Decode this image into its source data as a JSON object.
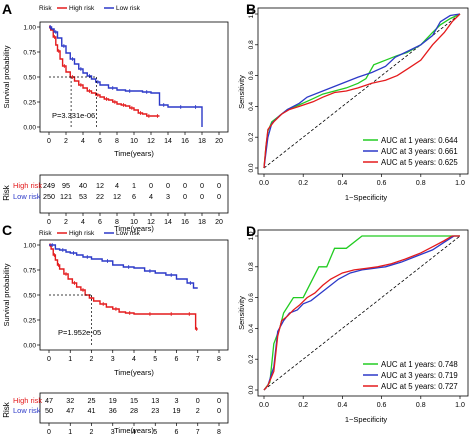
{
  "panels": {
    "A": {
      "letter": "A",
      "legend": {
        "title": "Risk",
        "high": "High risk",
        "low": "Low risk"
      },
      "pvalue": "P=3.331e-06",
      "ylabel": "Survival probability",
      "xlabel": "Time(years)",
      "risk_table": {
        "title": "Risk",
        "xlabel": "Time(years)",
        "rows": [
          {
            "label": "High risk",
            "counts": [
              "249",
              "95",
              "40",
              "12",
              "4",
              "1",
              "0",
              "0",
              "0",
              "0",
              "0"
            ]
          },
          {
            "label": "Low risk",
            "counts": [
              "250",
              "121",
              "53",
              "22",
              "12",
              "6",
              "4",
              "3",
              "0",
              "0",
              "0"
            ]
          }
        ]
      }
    },
    "B": {
      "letter": "B",
      "ylabel": "Sensitivity",
      "xlabel": "1−Specificity",
      "legend": [
        "AUC at 1 years: 0.644",
        "AUC at 3 years: 0.661",
        "AUC at 5 years: 0.625"
      ]
    },
    "C": {
      "letter": "C",
      "legend": {
        "title": "Risk",
        "high": "High risk",
        "low": "Low risk"
      },
      "pvalue": "P=1.952e-05",
      "ylabel": "Survival probability",
      "xlabel": "Time(years)",
      "risk_table": {
        "title": "Risk",
        "xlabel": "Time(years)",
        "rows": [
          {
            "label": "High risk",
            "counts": [
              "47",
              "32",
              "25",
              "19",
              "15",
              "13",
              "3",
              "0",
              "0"
            ]
          },
          {
            "label": "Low risk",
            "counts": [
              "50",
              "47",
              "41",
              "36",
              "28",
              "23",
              "19",
              "2",
              "0"
            ]
          }
        ]
      }
    },
    "D": {
      "letter": "D",
      "ylabel": "Sensitivity",
      "xlabel": "1−Specificity",
      "legend": [
        "AUC at 1 years: 0.748",
        "AUC at 3 years: 0.719",
        "AUC at 5 years: 0.727"
      ]
    }
  },
  "colors": {
    "high": "#e41a1c",
    "low": "#2c39c8",
    "auc1": "#22cc22",
    "auc3": "#2c39c8",
    "auc5": "#e41a1c"
  },
  "chart_data": [
    {
      "type": "line",
      "panel": "A",
      "xlabel": "Time(years)",
      "ylabel": "Survival probability",
      "xlim": [
        0,
        20
      ],
      "ylim": [
        0,
        1
      ],
      "xticks": [
        "0",
        "2",
        "4",
        "6",
        "8",
        "10",
        "12",
        "14",
        "16",
        "18",
        "20"
      ],
      "yticks": [
        "0.00",
        "0.25",
        "0.50",
        "0.75",
        "1.00"
      ],
      "annotation": "P=3.331e-06",
      "series": [
        {
          "name": "High risk",
          "color": "#e41a1c",
          "x": [
            0,
            0.2,
            0.5,
            0.8,
            1.0,
            1.3,
            1.6,
            2.0,
            2.5,
            3.0,
            3.5,
            4.0,
            4.5,
            5.0,
            5.5,
            6.0,
            6.5,
            7.0,
            7.5,
            8.0,
            8.5,
            9.0,
            9.5,
            10.0,
            10.5,
            11.0,
            11.5,
            12.0,
            12.5,
            13.0
          ],
          "y": [
            1.0,
            0.97,
            0.9,
            0.82,
            0.76,
            0.68,
            0.61,
            0.55,
            0.5,
            0.46,
            0.42,
            0.39,
            0.36,
            0.34,
            0.32,
            0.3,
            0.28,
            0.27,
            0.25,
            0.23,
            0.22,
            0.21,
            0.19,
            0.17,
            0.14,
            0.13,
            0.11,
            0.11,
            0.11,
            0.11
          ]
        },
        {
          "name": "Low risk",
          "color": "#2c39c8",
          "x": [
            0,
            0.3,
            0.6,
            1.0,
            1.5,
            2.0,
            2.5,
            3.0,
            3.5,
            4.0,
            4.5,
            5.0,
            5.5,
            6.0,
            7.0,
            8.0,
            9.0,
            10.0,
            11.0,
            12.0,
            13.0,
            14.0,
            15.0,
            16.0,
            17.0,
            17.5,
            18.0
          ],
          "y": [
            1.0,
            0.98,
            0.95,
            0.89,
            0.81,
            0.74,
            0.68,
            0.63,
            0.58,
            0.54,
            0.51,
            0.48,
            0.45,
            0.42,
            0.39,
            0.37,
            0.36,
            0.36,
            0.35,
            0.34,
            0.22,
            0.2,
            0.2,
            0.2,
            0.2,
            0.2,
            0.0
          ]
        }
      ]
    },
    {
      "type": "line",
      "panel": "B",
      "xlabel": "1−Specificity",
      "ylabel": "Sensitivity",
      "xlim": [
        0,
        1
      ],
      "ylim": [
        0,
        1
      ],
      "xticks": [
        "0.0",
        "0.2",
        "0.4",
        "0.6",
        "0.8",
        "1.0"
      ],
      "yticks": [
        "0.0",
        "0.2",
        "0.4",
        "0.6",
        "0.8",
        "1.0"
      ],
      "series": [
        {
          "name": "AUC at 1 years: 0.644",
          "color": "#22cc22",
          "x": [
            0,
            0.01,
            0.02,
            0.04,
            0.08,
            0.12,
            0.18,
            0.25,
            0.3,
            0.36,
            0.42,
            0.48,
            0.52,
            0.56,
            0.62,
            0.68,
            0.73,
            0.8,
            0.86,
            0.9,
            0.95,
            1.0
          ],
          "y": [
            0,
            0.14,
            0.24,
            0.3,
            0.34,
            0.38,
            0.41,
            0.45,
            0.48,
            0.5,
            0.52,
            0.55,
            0.58,
            0.67,
            0.7,
            0.73,
            0.75,
            0.8,
            0.88,
            0.93,
            0.97,
            1.0
          ]
        },
        {
          "name": "AUC at 3 years: 0.661",
          "color": "#2c39c8",
          "x": [
            0,
            0.01,
            0.02,
            0.04,
            0.08,
            0.12,
            0.18,
            0.22,
            0.3,
            0.36,
            0.42,
            0.48,
            0.55,
            0.62,
            0.67,
            0.72,
            0.8,
            0.86,
            0.9,
            0.95,
            1.0
          ],
          "y": [
            0,
            0.1,
            0.2,
            0.29,
            0.34,
            0.38,
            0.42,
            0.46,
            0.5,
            0.53,
            0.56,
            0.59,
            0.62,
            0.66,
            0.72,
            0.75,
            0.8,
            0.86,
            0.95,
            0.99,
            1.0
          ]
        },
        {
          "name": "AUC at 5 years: 0.625",
          "color": "#e41a1c",
          "x": [
            0,
            0.01,
            0.02,
            0.05,
            0.09,
            0.13,
            0.18,
            0.25,
            0.3,
            0.36,
            0.42,
            0.48,
            0.55,
            0.62,
            0.68,
            0.74,
            0.8,
            0.86,
            0.92,
            0.96,
            1.0
          ],
          "y": [
            0,
            0.14,
            0.25,
            0.3,
            0.35,
            0.38,
            0.4,
            0.43,
            0.46,
            0.49,
            0.5,
            0.52,
            0.55,
            0.57,
            0.6,
            0.65,
            0.7,
            0.8,
            0.88,
            0.95,
            1.0
          ]
        }
      ]
    },
    {
      "type": "line",
      "panel": "C",
      "xlabel": "Time(years)",
      "ylabel": "Survival probability",
      "xlim": [
        0,
        8
      ],
      "ylim": [
        0,
        1
      ],
      "xticks": [
        "0",
        "1",
        "2",
        "3",
        "4",
        "5",
        "6",
        "7",
        "8"
      ],
      "yticks": [
        "0.00",
        "0.25",
        "0.50",
        "0.75",
        "1.00"
      ],
      "annotation": "P=1.952e-05",
      "series": [
        {
          "name": "High risk",
          "color": "#e41a1c",
          "x": [
            0,
            0.1,
            0.2,
            0.3,
            0.4,
            0.5,
            0.7,
            0.9,
            1.1,
            1.3,
            1.5,
            1.7,
            1.9,
            2.1,
            2.4,
            2.7,
            3.0,
            3.3,
            3.6,
            4.0,
            4.5,
            5.0,
            5.5,
            6.0,
            6.5,
            6.7,
            6.9,
            7.0
          ],
          "y": [
            1.0,
            0.96,
            0.9,
            0.85,
            0.8,
            0.76,
            0.71,
            0.66,
            0.62,
            0.58,
            0.55,
            0.5,
            0.47,
            0.44,
            0.41,
            0.38,
            0.36,
            0.33,
            0.32,
            0.31,
            0.31,
            0.31,
            0.31,
            0.31,
            0.31,
            0.31,
            0.16,
            0.16
          ]
        },
        {
          "name": "Low risk",
          "color": "#2c39c8",
          "x": [
            0,
            0.3,
            0.5,
            0.8,
            1.0,
            1.3,
            1.6,
            2.0,
            2.5,
            3.0,
            3.5,
            4.0,
            4.5,
            5.0,
            5.5,
            6.0,
            6.5,
            6.8,
            7.0
          ],
          "y": [
            1.0,
            0.96,
            0.95,
            0.93,
            0.92,
            0.9,
            0.88,
            0.86,
            0.84,
            0.8,
            0.78,
            0.77,
            0.74,
            0.72,
            0.7,
            0.66,
            0.62,
            0.57,
            0.57
          ]
        }
      ]
    },
    {
      "type": "line",
      "panel": "D",
      "xlabel": "1−Specificity",
      "ylabel": "Sensitivity",
      "xlim": [
        0,
        1
      ],
      "ylim": [
        0,
        1
      ],
      "xticks": [
        "0.0",
        "0.2",
        "0.4",
        "0.6",
        "0.8",
        "1.0"
      ],
      "yticks": [
        "0.0",
        "0.2",
        "0.4",
        "0.6",
        "0.8",
        "1.0"
      ],
      "series": [
        {
          "name": "AUC at 1 years: 0.748",
          "color": "#22cc22",
          "x": [
            0,
            0.03,
            0.05,
            0.08,
            0.1,
            0.15,
            0.2,
            0.24,
            0.28,
            0.32,
            0.36,
            0.42,
            0.5,
            0.58,
            0.64,
            0.7,
            0.75,
            0.8,
            1.0
          ],
          "y": [
            0,
            0.05,
            0.3,
            0.4,
            0.5,
            0.6,
            0.6,
            0.7,
            0.8,
            0.8,
            0.92,
            0.92,
            1.0,
            1.0,
            1.0,
            1.0,
            1.0,
            1.0,
            1.0
          ]
        },
        {
          "name": "AUC at 3 years: 0.719",
          "color": "#2c39c8",
          "x": [
            0,
            0.02,
            0.05,
            0.07,
            0.1,
            0.13,
            0.17,
            0.2,
            0.24,
            0.28,
            0.32,
            0.38,
            0.44,
            0.5,
            0.56,
            0.62,
            0.7,
            0.78,
            0.86,
            0.92,
            0.97,
            1.0
          ],
          "y": [
            0,
            0.03,
            0.15,
            0.38,
            0.45,
            0.5,
            0.52,
            0.56,
            0.58,
            0.62,
            0.66,
            0.72,
            0.76,
            0.78,
            0.79,
            0.8,
            0.83,
            0.87,
            0.91,
            0.96,
            1.0,
            1.0
          ]
        },
        {
          "name": "AUC at 5 years: 0.727",
          "color": "#e41a1c",
          "x": [
            0,
            0.02,
            0.05,
            0.07,
            0.09,
            0.12,
            0.15,
            0.18,
            0.22,
            0.26,
            0.3,
            0.34,
            0.4,
            0.46,
            0.52,
            0.58,
            0.65,
            0.72,
            0.8,
            0.86,
            0.92,
            0.96,
            1.0
          ],
          "y": [
            0,
            0.03,
            0.12,
            0.35,
            0.45,
            0.48,
            0.52,
            0.55,
            0.6,
            0.63,
            0.68,
            0.72,
            0.76,
            0.78,
            0.79,
            0.8,
            0.82,
            0.85,
            0.89,
            0.93,
            0.97,
            1.0,
            1.0
          ]
        }
      ]
    }
  ]
}
